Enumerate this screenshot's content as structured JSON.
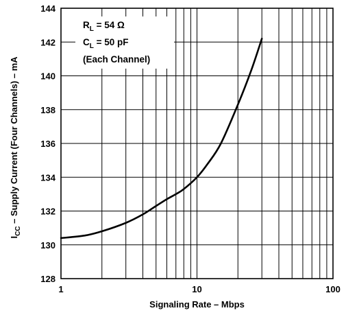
{
  "chart_data": {
    "type": "line",
    "x_scale": "log",
    "xlim": [
      1,
      100
    ],
    "ylim": [
      128,
      144
    ],
    "grid": true,
    "xlabel": "Signaling Rate – Mbps",
    "ylabel": {
      "prefix": "I",
      "subscript": "CC",
      "rest": " – Supply Current (Four Channels) – mA"
    },
    "x_ticks": [
      "1",
      "10",
      "100"
    ],
    "y_ticks": [
      "128",
      "130",
      "132",
      "134",
      "136",
      "138",
      "140",
      "142",
      "144"
    ],
    "annotation": {
      "line1": {
        "prefix": "R",
        "subscript": "L",
        "rest": " = 54 Ω"
      },
      "line2": {
        "prefix": "C",
        "subscript": "L",
        "rest": " = 50 pF"
      },
      "line3": "(Each Channel)"
    },
    "series": [
      {
        "color": "#000000",
        "x": [
          1,
          1.5,
          2,
          3,
          4,
          5,
          6,
          7,
          8,
          10,
          12,
          15,
          20,
          25,
          30
        ],
        "y": [
          130.4,
          130.55,
          130.8,
          131.3,
          131.8,
          132.3,
          132.7,
          133.0,
          133.3,
          134.0,
          134.8,
          136.0,
          138.3,
          140.3,
          142.2
        ]
      }
    ]
  }
}
